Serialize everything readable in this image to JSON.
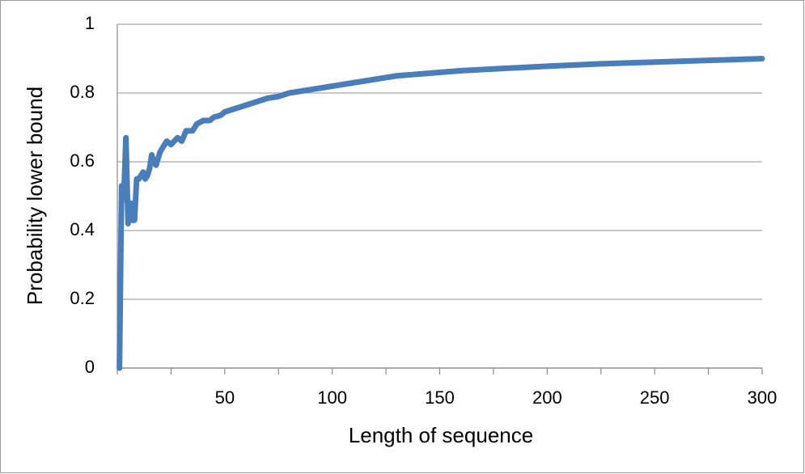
{
  "chart_data": {
    "type": "line",
    "x_label": "Length of sequence",
    "y_label": "Probability lower bound",
    "series": [
      {
        "name": "Probability lower bound",
        "color": "#4a7ebb",
        "x": [
          1,
          2,
          3,
          4,
          5,
          6,
          7,
          8,
          9,
          10,
          11,
          12,
          13,
          14,
          15,
          16,
          17,
          18,
          20,
          22,
          23,
          25,
          28,
          30,
          32,
          35,
          37,
          40,
          43,
          45,
          48,
          50,
          55,
          60,
          65,
          70,
          75,
          80,
          90,
          100,
          110,
          120,
          130,
          140,
          150,
          160,
          175,
          200,
          225,
          250,
          275,
          300
        ],
        "values": [
          0,
          0.53,
          0.49,
          0.67,
          0.42,
          0.48,
          0.43,
          0.43,
          0.55,
          0.55,
          0.56,
          0.57,
          0.55,
          0.56,
          0.58,
          0.62,
          0.6,
          0.59,
          0.63,
          0.65,
          0.66,
          0.65,
          0.67,
          0.66,
          0.69,
          0.69,
          0.71,
          0.72,
          0.72,
          0.73,
          0.735,
          0.745,
          0.755,
          0.765,
          0.775,
          0.785,
          0.79,
          0.8,
          0.81,
          0.82,
          0.83,
          0.84,
          0.85,
          0.855,
          0.86,
          0.865,
          0.87,
          0.878,
          0.885,
          0.89,
          0.895,
          0.9
        ]
      }
    ],
    "xlim": [
      0,
      300
    ],
    "xticks": [
      50,
      100,
      150,
      200,
      250,
      300
    ],
    "xminor_ticks": [
      0,
      25,
      75,
      125,
      175,
      225,
      275
    ],
    "ylim": [
      0,
      1
    ],
    "yticks": [
      0,
      0.2,
      0.4,
      0.6,
      0.8,
      1
    ],
    "grid": true
  }
}
